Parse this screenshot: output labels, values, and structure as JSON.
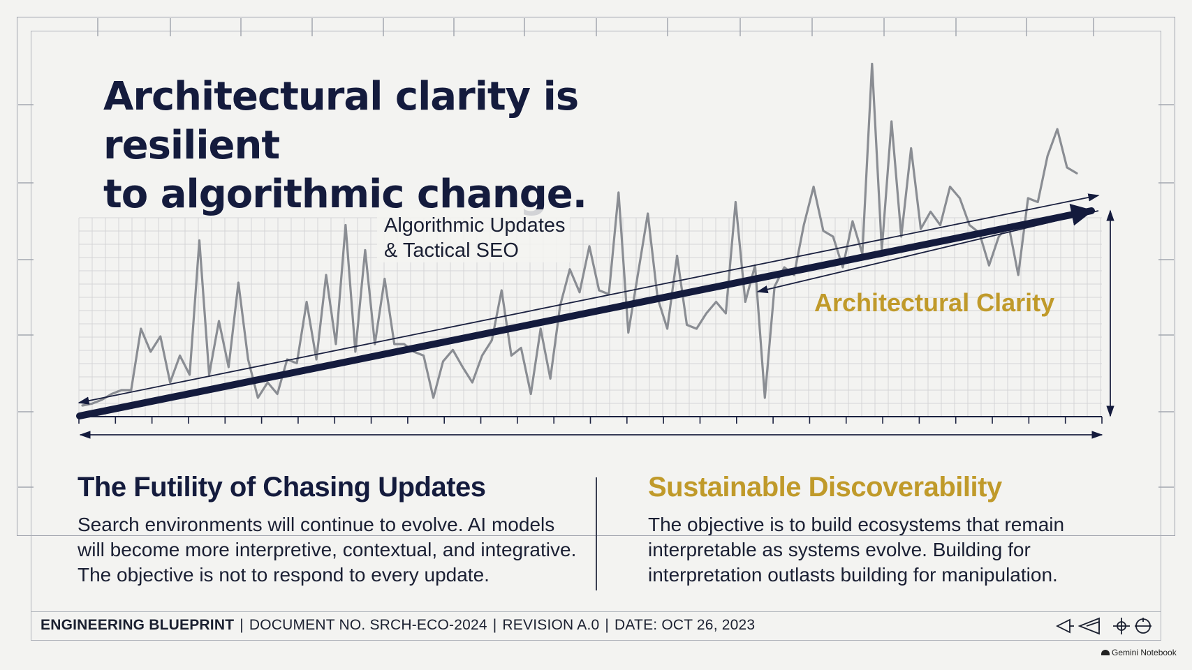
{
  "headline": {
    "line1": "Architectural clarity is resilient",
    "line2": "to algorithmic change."
  },
  "diagram": {
    "volatile_label_line1": "Algorithmic Updates",
    "volatile_label_line2": "& Tactical SEO",
    "trend_label": "Architectural Clarity",
    "volatile_signal": [
      0.04,
      0.05,
      0.07,
      0.1,
      0.12,
      0.12,
      0.44,
      0.32,
      0.4,
      0.16,
      0.3,
      0.2,
      0.9,
      0.2,
      0.48,
      0.24,
      0.68,
      0.28,
      0.08,
      0.16,
      0.1,
      0.28,
      0.26,
      0.58,
      0.28,
      0.72,
      0.36,
      0.98,
      0.32,
      0.85,
      0.36,
      0.7,
      0.36,
      0.36,
      0.32,
      0.3,
      0.08,
      0.27,
      0.33,
      0.24,
      0.16,
      0.3,
      0.38,
      0.64,
      0.3,
      0.34,
      0.1,
      0.44,
      0.18,
      0.56,
      0.75,
      0.63,
      0.87,
      0.64,
      0.62,
      1.15,
      0.42,
      0.73,
      1.04,
      0.6,
      0.44,
      0.82,
      0.46,
      0.44,
      0.52,
      0.58,
      0.52,
      1.1,
      0.58,
      0.77,
      0.08,
      0.66,
      0.76,
      0.72,
      0.98,
      1.18,
      0.95,
      0.92,
      0.76,
      1.0,
      0.83,
      1.82,
      0.85,
      1.52,
      0.92,
      1.38,
      0.96,
      1.05,
      0.98,
      1.18,
      1.12,
      0.98,
      0.94,
      0.77,
      0.92,
      0.98,
      0.72,
      1.12,
      1.1,
      1.34,
      1.48,
      1.28,
      1.25
    ]
  },
  "left_column": {
    "heading": "The Futility of Chasing Updates",
    "line1": "Search environments will continue to evolve. AI models",
    "line2": "will become more interpretive, contextual, and integrative.",
    "line3": "The objective is not to respond to every update."
  },
  "right_column": {
    "heading": "Sustainable Discoverability",
    "line1": "The objective is to build ecosystems that remain",
    "line2": "interpretable as systems evolve. Building for",
    "line3": "interpretation outlasts building for manipulation."
  },
  "footer": {
    "title": "ENGINEERING BLUEPRINT",
    "separator": "|",
    "document": "DOCUMENT NO. SRCH-ECO-2024",
    "revision": "REVISION A.0",
    "date": "DATE: OCT 26, 2023",
    "icons": [
      "triangle-marker-icon",
      "double-triangle-marker-icon",
      "crosshair-icon",
      "target-icon"
    ]
  },
  "brand": "Gemini Notebook",
  "colors": {
    "navy": "#141b3d",
    "gold": "#c09a2a",
    "volatile_line": "#8a8d93",
    "grid": "#d4d5d6",
    "background": "#f3f3f1"
  }
}
